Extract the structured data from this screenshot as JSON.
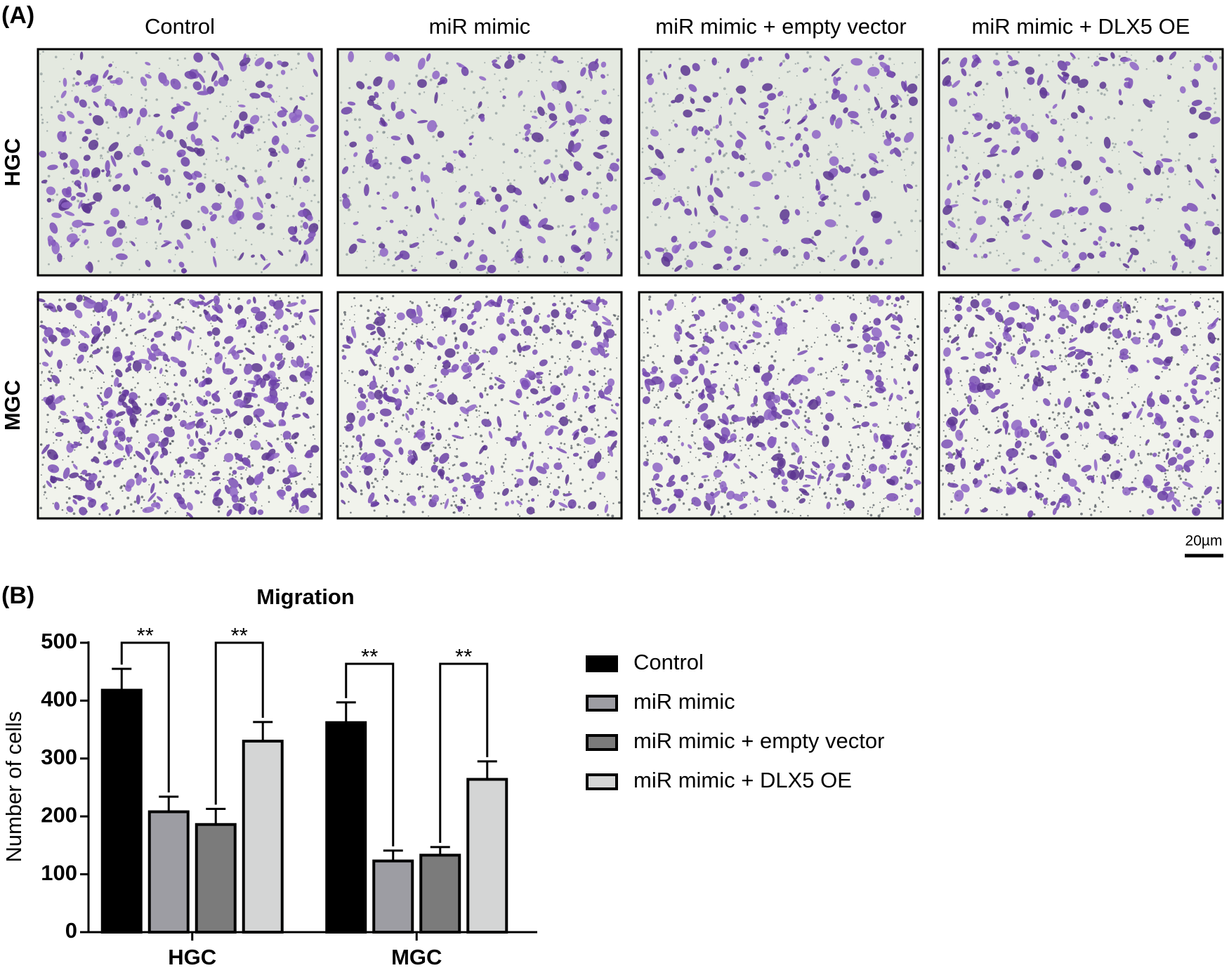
{
  "panel_a": {
    "label": "(A)",
    "column_titles": [
      "Control",
      "miR mimic",
      "miR mimic + empty vector",
      "miR mimic + DLX5 OE"
    ],
    "row_labels": [
      "HGC",
      "MGC"
    ],
    "scale_bar": "20µm"
  },
  "chart_data": {
    "type": "bar",
    "label": "(B)",
    "title": "Migration",
    "y_label": "Number of cells",
    "categories": [
      "HGC",
      "MGC"
    ],
    "series": [
      {
        "name": "Control",
        "color": "#000000",
        "values": [
          418,
          362
        ],
        "errors": [
          37,
          35
        ]
      },
      {
        "name": "miR mimic",
        "color": "#9d9da3",
        "values": [
          208,
          123
        ],
        "errors": [
          26,
          18
        ]
      },
      {
        "name": "miR mimic + empty vector",
        "color": "#7b7b7b",
        "values": [
          186,
          133
        ],
        "errors": [
          27,
          14
        ]
      },
      {
        "name": "miR mimic + DLX5 OE",
        "color": "#d4d5d5",
        "values": [
          330,
          264
        ],
        "errors": [
          33,
          31
        ]
      }
    ],
    "ylim": [
      0,
      500
    ],
    "yticks": [
      0,
      100,
      200,
      300,
      400,
      500
    ],
    "legend": "right",
    "significance": [
      {
        "category": "HGC",
        "pair": [
          "Control",
          "miR mimic"
        ],
        "label": "**"
      },
      {
        "category": "HGC",
        "pair": [
          "miR mimic + empty vector",
          "miR mimic + DLX5 OE"
        ],
        "label": "**"
      },
      {
        "category": "MGC",
        "pair": [
          "Control",
          "miR mimic"
        ],
        "label": "**"
      },
      {
        "category": "MGC",
        "pair": [
          "miR mimic + empty vector",
          "miR mimic + DLX5 OE"
        ],
        "label": "**"
      }
    ]
  }
}
